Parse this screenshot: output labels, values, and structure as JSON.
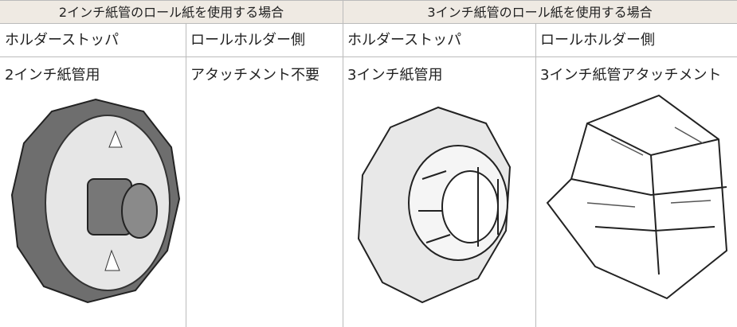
{
  "table": {
    "header": [
      "2インチ紙管のロール紙を使用する場合",
      "3インチ紙管のロール紙を使用する場合"
    ],
    "subheader": [
      "ホルダーストッパ",
      "ロールホルダー側",
      "ホルダーストッパ",
      "ロールホルダー側"
    ],
    "cells": [
      "2インチ紙管用",
      "アタッチメント不要",
      "3インチ紙管用",
      "3インチ紙管アタッチメント"
    ]
  }
}
